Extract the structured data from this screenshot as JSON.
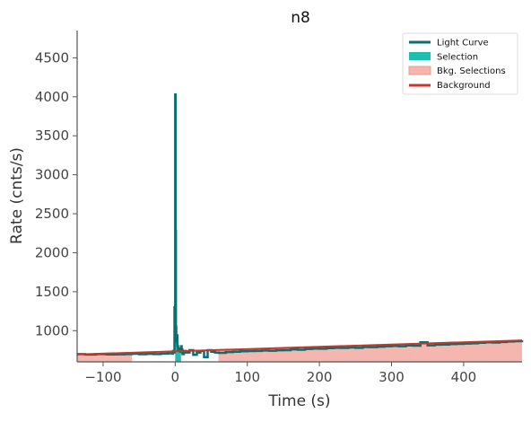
{
  "chart_data": {
    "type": "line",
    "title": "n8",
    "xlabel": "Time (s)",
    "ylabel": "Rate (cnts/s)",
    "xlim": [
      -136,
      481
    ],
    "ylim": [
      600,
      4850
    ],
    "xticks": [
      -100,
      0,
      100,
      200,
      300,
      400
    ],
    "yticks": [
      1000,
      1500,
      2000,
      2500,
      3000,
      3500,
      4000,
      4500
    ],
    "xtick_labels": [
      "−100",
      "0",
      "100",
      "200",
      "300",
      "400"
    ],
    "ytick_labels": [
      "1000",
      "1500",
      "2000",
      "2500",
      "3000",
      "3500",
      "4000",
      "4500"
    ],
    "grid": false,
    "legend_position": "top-right",
    "legend": [
      "Light Curve",
      "Selection",
      "Bkg. Selections",
      "Background"
    ],
    "colors": {
      "light_curve": "#0d6e6e",
      "selection": "#1fbfb0",
      "bkg_selection": "#f4b6ae",
      "background": "#c0392b"
    },
    "bkg_selections": [
      [
        -136,
        -60
      ],
      [
        60,
        481
      ]
    ],
    "selection": [
      0,
      8
    ],
    "background": {
      "x": [
        -136,
        481
      ],
      "y": [
        695,
        875
      ]
    },
    "series": [
      {
        "name": "Light Curve",
        "x": [
          -136,
          -125,
          -110,
          -95,
          -80,
          -70,
          -60,
          -50,
          -40,
          -30,
          -20,
          -10,
          -4,
          -3,
          -2,
          -1,
          0,
          0.5,
          1,
          1.5,
          2,
          3,
          4,
          5,
          6,
          7,
          8,
          9,
          10,
          12,
          15,
          20,
          25,
          30,
          35,
          40,
          45,
          50,
          55,
          60,
          70,
          80,
          90,
          100,
          110,
          120,
          130,
          140,
          150,
          160,
          170,
          180,
          190,
          200,
          210,
          220,
          230,
          240,
          250,
          260,
          270,
          280,
          290,
          300,
          310,
          320,
          330,
          340,
          350,
          360,
          370,
          380,
          390,
          400,
          410,
          420,
          430,
          440,
          450,
          460,
          470,
          481
        ],
        "y": [
          700,
          693,
          700,
          695,
          697,
          700,
          703,
          698,
          702,
          700,
          705,
          710,
          705,
          740,
          720,
          1300,
          4030,
          2280,
          1050,
          860,
          940,
          800,
          750,
          770,
          760,
          730,
          800,
          760,
          700,
          740,
          720,
          750,
          690,
          720,
          740,
          660,
          750,
          730,
          720,
          715,
          725,
          730,
          735,
          738,
          740,
          745,
          742,
          748,
          750,
          760,
          755,
          765,
          770,
          768,
          775,
          780,
          778,
          785,
          780,
          790,
          788,
          795,
          800,
          805,
          800,
          810,
          808,
          850,
          812,
          820,
          822,
          828,
          830,
          835,
          838,
          845,
          850,
          848,
          855,
          860,
          865,
          875
        ]
      }
    ]
  }
}
